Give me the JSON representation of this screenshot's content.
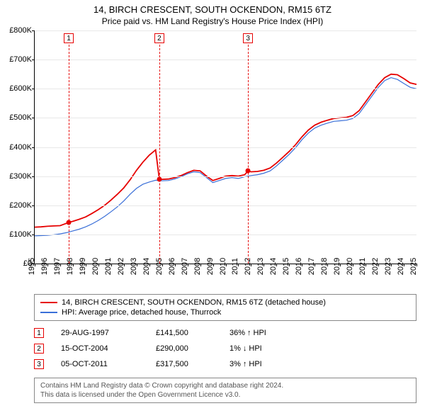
{
  "title": "14, BIRCH CRESCENT, SOUTH OCKENDON, RM15 6TZ",
  "subtitle": "Price paid vs. HM Land Registry's House Price Index (HPI)",
  "chart": {
    "type": "line",
    "ylim": [
      0,
      800000
    ],
    "ytick_step": 100000,
    "ytick_labels": [
      "£0",
      "£100K",
      "£200K",
      "£300K",
      "£400K",
      "£500K",
      "£600K",
      "£700K",
      "£800K"
    ],
    "x_start_year": 1995,
    "x_end_year": 2025,
    "xtick_step": 1,
    "background_color": "#ffffff",
    "grid_color": "#e8e8e8",
    "series": [
      {
        "name": "property",
        "label": "14, BIRCH CRESCENT, SOUTH OCKENDON, RM15 6TZ (detached house)",
        "color": "#e60000",
        "line_width": 1.8,
        "points": [
          [
            1995.0,
            125000
          ],
          [
            1995.5,
            126000
          ],
          [
            1996.0,
            128000
          ],
          [
            1996.5,
            129000
          ],
          [
            1997.0,
            130000
          ],
          [
            1997.5,
            138000
          ],
          [
            1997.67,
            141500
          ],
          [
            1998.0,
            145000
          ],
          [
            1998.5,
            152000
          ],
          [
            1999.0,
            160000
          ],
          [
            1999.5,
            172000
          ],
          [
            2000.0,
            185000
          ],
          [
            2000.5,
            200000
          ],
          [
            2001.0,
            218000
          ],
          [
            2001.5,
            238000
          ],
          [
            2002.0,
            260000
          ],
          [
            2002.5,
            288000
          ],
          [
            2003.0,
            320000
          ],
          [
            2003.5,
            348000
          ],
          [
            2004.0,
            372000
          ],
          [
            2004.5,
            390000
          ],
          [
            2004.79,
            290000
          ],
          [
            2005.0,
            289000
          ],
          [
            2005.5,
            290000
          ],
          [
            2006.0,
            295000
          ],
          [
            2006.5,
            302000
          ],
          [
            2007.0,
            312000
          ],
          [
            2007.5,
            320000
          ],
          [
            2008.0,
            318000
          ],
          [
            2008.5,
            300000
          ],
          [
            2009.0,
            285000
          ],
          [
            2009.5,
            292000
          ],
          [
            2010.0,
            300000
          ],
          [
            2010.5,
            302000
          ],
          [
            2011.0,
            300000
          ],
          [
            2011.5,
            305000
          ],
          [
            2011.76,
            317500
          ],
          [
            2012.0,
            315000
          ],
          [
            2012.5,
            316000
          ],
          [
            2013.0,
            320000
          ],
          [
            2013.5,
            328000
          ],
          [
            2014.0,
            345000
          ],
          [
            2014.5,
            365000
          ],
          [
            2015.0,
            385000
          ],
          [
            2015.5,
            408000
          ],
          [
            2016.0,
            435000
          ],
          [
            2016.5,
            458000
          ],
          [
            2017.0,
            475000
          ],
          [
            2017.5,
            485000
          ],
          [
            2018.0,
            492000
          ],
          [
            2018.5,
            498000
          ],
          [
            2019.0,
            500000
          ],
          [
            2019.5,
            502000
          ],
          [
            2020.0,
            508000
          ],
          [
            2020.5,
            525000
          ],
          [
            2021.0,
            555000
          ],
          [
            2021.5,
            585000
          ],
          [
            2022.0,
            615000
          ],
          [
            2022.5,
            638000
          ],
          [
            2023.0,
            650000
          ],
          [
            2023.5,
            648000
          ],
          [
            2024.0,
            635000
          ],
          [
            2024.5,
            620000
          ],
          [
            2025.0,
            615000
          ]
        ]
      },
      {
        "name": "hpi",
        "label": "HPI: Average price, detached house, Thurrock",
        "color": "#3a6fd8",
        "line_width": 1.2,
        "points": [
          [
            1995.0,
            95000
          ],
          [
            1995.5,
            96000
          ],
          [
            1996.0,
            97000
          ],
          [
            1996.5,
            99000
          ],
          [
            1997.0,
            102000
          ],
          [
            1997.5,
            106000
          ],
          [
            1998.0,
            112000
          ],
          [
            1998.5,
            118000
          ],
          [
            1999.0,
            126000
          ],
          [
            1999.5,
            136000
          ],
          [
            2000.0,
            148000
          ],
          [
            2000.5,
            162000
          ],
          [
            2001.0,
            178000
          ],
          [
            2001.5,
            195000
          ],
          [
            2002.0,
            215000
          ],
          [
            2002.5,
            238000
          ],
          [
            2003.0,
            258000
          ],
          [
            2003.5,
            272000
          ],
          [
            2004.0,
            280000
          ],
          [
            2004.5,
            286000
          ],
          [
            2005.0,
            284000
          ],
          [
            2005.5,
            285000
          ],
          [
            2006.0,
            290000
          ],
          [
            2006.5,
            298000
          ],
          [
            2007.0,
            308000
          ],
          [
            2007.5,
            315000
          ],
          [
            2008.0,
            312000
          ],
          [
            2008.5,
            295000
          ],
          [
            2009.0,
            278000
          ],
          [
            2009.5,
            285000
          ],
          [
            2010.0,
            292000
          ],
          [
            2010.5,
            295000
          ],
          [
            2011.0,
            292000
          ],
          [
            2011.5,
            298000
          ],
          [
            2012.0,
            302000
          ],
          [
            2012.5,
            305000
          ],
          [
            2013.0,
            310000
          ],
          [
            2013.5,
            318000
          ],
          [
            2014.0,
            335000
          ],
          [
            2014.5,
            355000
          ],
          [
            2015.0,
            375000
          ],
          [
            2015.5,
            398000
          ],
          [
            2016.0,
            425000
          ],
          [
            2016.5,
            448000
          ],
          [
            2017.0,
            465000
          ],
          [
            2017.5,
            475000
          ],
          [
            2018.0,
            482000
          ],
          [
            2018.5,
            488000
          ],
          [
            2019.0,
            490000
          ],
          [
            2019.5,
            492000
          ],
          [
            2020.0,
            498000
          ],
          [
            2020.5,
            515000
          ],
          [
            2021.0,
            545000
          ],
          [
            2021.5,
            575000
          ],
          [
            2022.0,
            605000
          ],
          [
            2022.5,
            628000
          ],
          [
            2023.0,
            638000
          ],
          [
            2023.5,
            632000
          ],
          [
            2024.0,
            618000
          ],
          [
            2024.5,
            605000
          ],
          [
            2025.0,
            600000
          ]
        ]
      }
    ],
    "markers": [
      {
        "n": "1",
        "year": 1997.67,
        "price": 141500,
        "color": "#e60000"
      },
      {
        "n": "2",
        "year": 2004.79,
        "price": 290000,
        "color": "#e60000"
      },
      {
        "n": "3",
        "year": 2011.76,
        "price": 317500,
        "color": "#e60000"
      }
    ]
  },
  "legend": {
    "items": [
      {
        "color": "#e60000",
        "width": 2,
        "label": "14, BIRCH CRESCENT, SOUTH OCKENDON, RM15 6TZ (detached house)"
      },
      {
        "color": "#3a6fd8",
        "width": 1.2,
        "label": "HPI: Average price, detached house, Thurrock"
      }
    ]
  },
  "transactions": [
    {
      "n": "1",
      "color": "#e60000",
      "date": "29-AUG-1997",
      "price": "£141,500",
      "diff_pct": "36%",
      "diff_dir": "up",
      "diff_suffix": "HPI"
    },
    {
      "n": "2",
      "color": "#e60000",
      "date": "15-OCT-2004",
      "price": "£290,000",
      "diff_pct": "1%",
      "diff_dir": "down",
      "diff_suffix": "HPI"
    },
    {
      "n": "3",
      "color": "#e60000",
      "date": "05-OCT-2011",
      "price": "£317,500",
      "diff_pct": "3%",
      "diff_dir": "up",
      "diff_suffix": "HPI"
    }
  ],
  "footer": {
    "line1": "Contains HM Land Registry data © Crown copyright and database right 2024.",
    "line2": "This data is licensed under the Open Government Licence v3.0."
  }
}
